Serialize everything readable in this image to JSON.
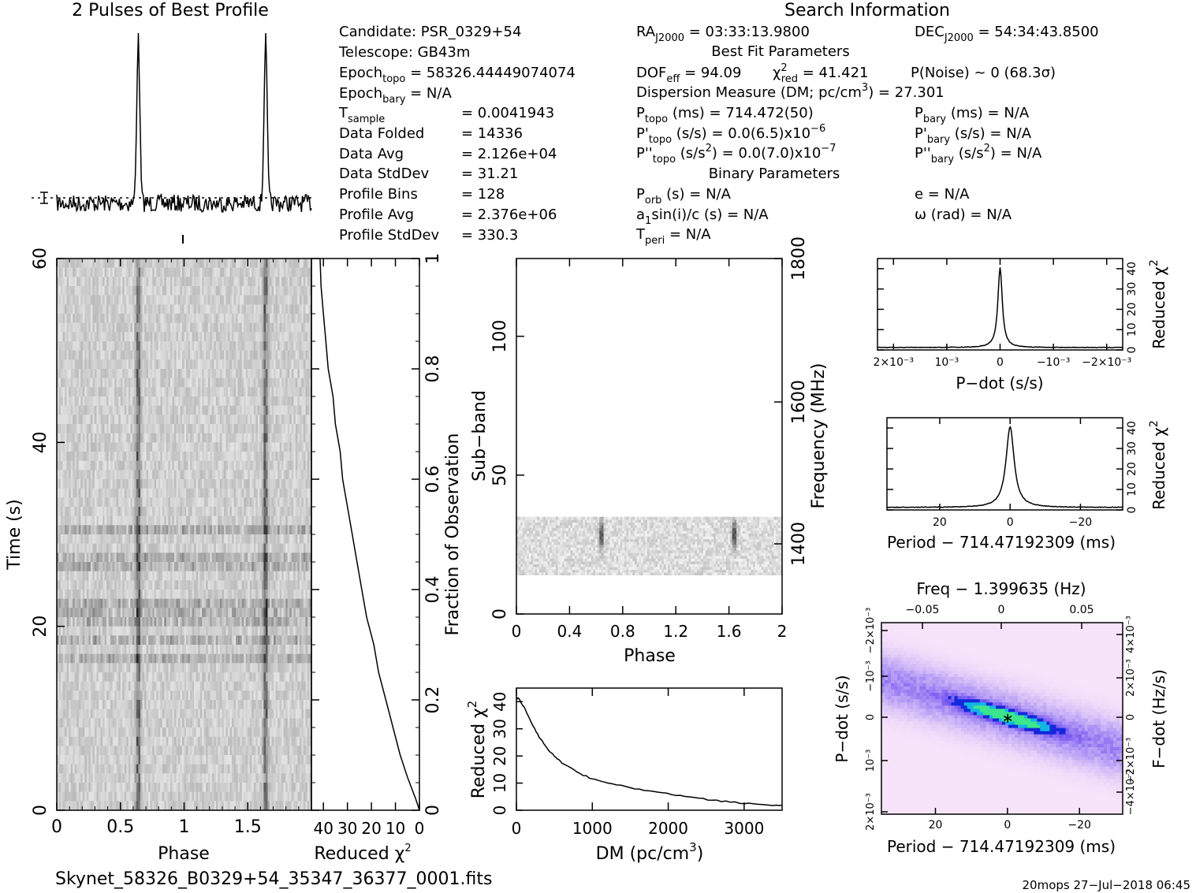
{
  "header": {
    "profile_title": "2 Pulses of Best Profile",
    "search_title": "Search Information"
  },
  "info": {
    "left": [
      {
        "main": "Candidate:  PSR_0329+54"
      },
      {
        "main": "Telescope:  GB43m"
      },
      {
        "pre": "Epoch",
        "sub": "topo",
        "post": " = 58326.44449074074"
      },
      {
        "pre": "Epoch",
        "sub": "bary",
        "post": " = N/A"
      },
      {
        "pre": "T",
        "sub": "sample",
        "post": "",
        "col": "=  0.0041943"
      },
      {
        "pre": "Data Folded",
        "col": "=  14336"
      },
      {
        "pre": "Data Avg",
        "col": "=  2.126e+04"
      },
      {
        "pre": "Data StdDev",
        "col": "=  31.21"
      },
      {
        "pre": "Profile Bins",
        "col": "=  128"
      },
      {
        "pre": "Profile Avg",
        "col": "=  2.376e+06"
      },
      {
        "pre": "Profile StdDev",
        "col": "=  330.3"
      }
    ],
    "ra": {
      "pre": "RA",
      "sub": "J2000",
      "post": " = 03:33:13.9800"
    },
    "dec": {
      "pre": "DEC",
      "sub": "J2000",
      "post": " = 54:34:43.8500"
    },
    "best_fit_title": "Best Fit Parameters",
    "dof": "DOF",
    "dof_sub": "eff",
    "dof_val": " = 94.09",
    "chi_text": "χ",
    "chi_sup": "2",
    "chi_sub": "red",
    "chi_val": " = 41.421",
    "pnoise": "P(Noise) ~ 0    (68.3σ)",
    "dm_line": "Dispersion Measure (DM; pc/cm",
    "dm_sup": "3",
    "dm_val": ") = 27.301",
    "ptopo": {
      "pre": "P",
      "sub": "topo",
      "post": " (ms) =  714.472(50)"
    },
    "pbary": {
      "pre": "P",
      "sub": "bary",
      "post": " (ms) = N/A"
    },
    "pdtopo": {
      "pre": "P'",
      "sub": "topo",
      "post": " (s/s) = 0.0(6.5)x10",
      "sup": "−6"
    },
    "pdbary": {
      "pre": "P'",
      "sub": "bary",
      "post": " (s/s) = N/A"
    },
    "pddtopo": {
      "pre": "P''",
      "sub": "topo",
      "mid": " (s/s",
      "msup": "2",
      "post": ") = 0.0(7.0)x10",
      "sup": "−7"
    },
    "pddbary": {
      "pre": "P''",
      "sub": "bary",
      "mid": " (s/s",
      "msup": "2",
      "post": ") = N/A"
    },
    "binary_title": "Binary Parameters",
    "porb": {
      "pre": "P",
      "sub": "orb",
      "post": " (s) = N/A"
    },
    "ecc": "e = N/A",
    "a1": {
      "pre": "a",
      "sub": "1",
      "post": "sin(i)/c (s) = N/A"
    },
    "omega": "ω (rad) = N/A",
    "tperi": {
      "pre": "T",
      "sub": "peri",
      "post": " = N/A"
    }
  },
  "footer": {
    "filename": "Skynet_58326_B0329+54_35347_36377_0001.fits",
    "stamp": "20mops 27−Jul−2018 06:45"
  },
  "chart_data": [
    {
      "type": "line",
      "id": "profile",
      "title": "2 Pulses of Best Profile",
      "x_range": [
        0,
        2
      ],
      "pulse_phases": [
        0.64,
        1.64
      ],
      "description_free": true
    },
    {
      "type": "heatmap",
      "id": "time-phase",
      "xlabel": "Phase",
      "ylabel": "Time (s)",
      "x_ticks": [
        "0",
        "0.5",
        "1",
        "1.5"
      ],
      "x_tick_values": [
        0,
        0.5,
        1,
        1.5
      ],
      "y_ticks": [
        "0",
        "20",
        "40",
        "60"
      ],
      "y_tick_values": [
        0,
        20,
        40,
        60
      ],
      "xlim": [
        0,
        2
      ],
      "ylim": [
        0,
        60
      ],
      "pulse_phases": [
        0.64,
        1.64
      ]
    },
    {
      "type": "line",
      "id": "chi-vs-time",
      "xlabel": "Reduced χ",
      "xlabel_sup": "2",
      "x_ticks": [
        "40",
        "30",
        "20",
        "10",
        "0"
      ],
      "x_tick_values": [
        40,
        30,
        20,
        10,
        0
      ],
      "xlim": [
        45,
        0
      ],
      "right_label": "Fraction of Observation",
      "right_ticks": [
        "0",
        "0.2",
        "0.4",
        "0.6",
        "0.8",
        "1"
      ],
      "right_tick_values": [
        0,
        0.2,
        0.4,
        0.6,
        0.8,
        1
      ],
      "points": [
        [
          0.0,
          0
        ],
        [
          1.5,
          0.02
        ],
        [
          5,
          0.06
        ],
        [
          8,
          0.1
        ],
        [
          11,
          0.15
        ],
        [
          14,
          0.2
        ],
        [
          17,
          0.25
        ],
        [
          19,
          0.3
        ],
        [
          22,
          0.35
        ],
        [
          24,
          0.4
        ],
        [
          26,
          0.45
        ],
        [
          28,
          0.5
        ],
        [
          30,
          0.55
        ],
        [
          32,
          0.6
        ],
        [
          33,
          0.65
        ],
        [
          35,
          0.7
        ],
        [
          36,
          0.75
        ],
        [
          38,
          0.8
        ],
        [
          39,
          0.85
        ],
        [
          40,
          0.9
        ],
        [
          41,
          0.95
        ],
        [
          41.4,
          1.0
        ]
      ]
    },
    {
      "type": "heatmap",
      "id": "subband-phase",
      "xlabel": "Phase",
      "ylabel": "Sub−band",
      "right_label": "Frequency (MHz)",
      "x_ticks": [
        "0",
        "0.4",
        "0.8",
        "1.2",
        "1.6",
        "2"
      ],
      "x_tick_values": [
        0,
        0.4,
        0.8,
        1.2,
        1.6,
        2
      ],
      "y_ticks": [
        "0",
        "50",
        "100"
      ],
      "y_tick_values": [
        0,
        50,
        100
      ],
      "right_ticks": [
        "1400",
        "1600",
        "1800"
      ],
      "xlim": [
        0,
        2
      ],
      "ylim": [
        0,
        128
      ],
      "data_band": [
        14,
        35
      ],
      "pulse_phases": [
        0.64,
        1.64
      ]
    },
    {
      "type": "line",
      "id": "chi-vs-dm",
      "xlabel": "DM (pc/cm",
      "xlabel_sup": "3",
      "xlabel_end": ")",
      "ylabel": "Reduced χ",
      "ylabel_sup": "2",
      "x_ticks": [
        "0",
        "1000",
        "2000",
        "3000"
      ],
      "x_tick_values": [
        0,
        1000,
        2000,
        3000
      ],
      "y_ticks": [
        "0",
        "10",
        "20",
        "30",
        "40"
      ],
      "y_tick_values": [
        0,
        10,
        20,
        30,
        40
      ],
      "xlim": [
        0,
        3500
      ],
      "ylim": [
        0,
        45
      ],
      "points": [
        [
          0,
          41
        ],
        [
          27,
          41.4
        ],
        [
          100,
          38
        ],
        [
          200,
          32
        ],
        [
          300,
          27
        ],
        [
          400,
          23
        ],
        [
          500,
          20
        ],
        [
          600,
          17.5
        ],
        [
          800,
          14
        ],
        [
          1000,
          11.5
        ],
        [
          1200,
          10
        ],
        [
          1500,
          8.3
        ],
        [
          1800,
          6.8
        ],
        [
          2100,
          5.6
        ],
        [
          2400,
          4.4
        ],
        [
          2700,
          3.4
        ],
        [
          3000,
          2.6
        ],
        [
          3300,
          2.0
        ],
        [
          3500,
          1.8
        ]
      ]
    },
    {
      "type": "line",
      "id": "chi-vs-pdot",
      "xlabel": "P−dot (s/s)",
      "ylabel": "Reduced χ",
      "ylabel_sup": "2",
      "x_ticks": [
        "2×10⁻³",
        "10⁻³",
        "0",
        "−10⁻³",
        "−2×10⁻³"
      ],
      "x_tick_values": [
        0.002,
        0.001,
        0,
        -0.001,
        -0.002
      ],
      "y_ticks": [
        "0",
        "10",
        "20",
        "30",
        "40"
      ],
      "y_tick_values": [
        0,
        10,
        20,
        30,
        40
      ],
      "xlim": [
        0.0023,
        -0.0023
      ],
      "ylim": [
        0,
        45
      ],
      "peak": 41.4
    },
    {
      "type": "line",
      "id": "chi-vs-period",
      "xlabel": "Period − 714.47192309 (ms)",
      "ylabel": "Reduced χ",
      "ylabel_sup": "2",
      "x_ticks": [
        "20",
        "0",
        "−20"
      ],
      "x_tick_values": [
        20,
        0,
        -20
      ],
      "y_ticks": [
        "0",
        "10",
        "20",
        "30",
        "40"
      ],
      "y_tick_values": [
        0,
        10,
        20,
        30,
        40
      ],
      "xlim": [
        35,
        -32
      ],
      "ylim": [
        0,
        45
      ],
      "peak": 41.4
    },
    {
      "type": "heatmap",
      "id": "pdot-period",
      "title": "Freq − 1.399635 (Hz)",
      "xlabel": "Period − 714.47192309 (ms)",
      "ylabel": "P−dot (s/s)",
      "right_label": "F−dot (Hz/s)",
      "x_ticks": [
        "20",
        "0",
        "−20"
      ],
      "x_tick_values": [
        20,
        0,
        -20
      ],
      "top_ticks": [
        "−0.05",
        "0",
        "0.05"
      ],
      "left_ticks": [
        "2×10⁻³",
        "10⁻³",
        "0",
        "−10⁻³",
        "−2×10⁻³"
      ],
      "right_ticks": [
        "−4×10⁻³",
        "−2×10⁻³",
        "0",
        "2×10⁻³",
        "4×10⁻³"
      ],
      "xlim": [
        35,
        -32
      ],
      "ylim": [
        0.0023,
        -0.0023
      ]
    }
  ]
}
